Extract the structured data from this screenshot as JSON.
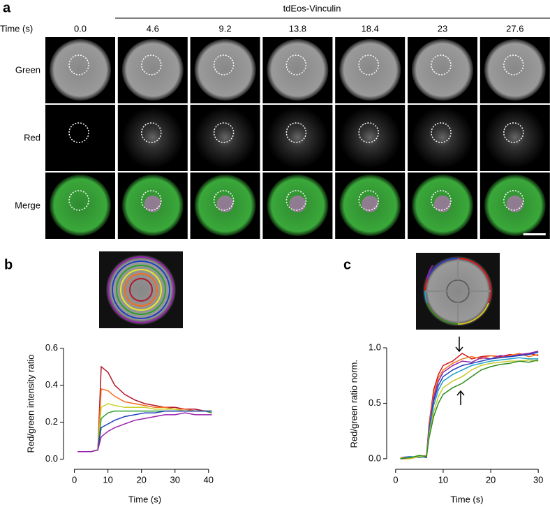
{
  "figure": {
    "panel_a": {
      "letter": "a",
      "title": "tdEos-Vinculin",
      "time_label": "Time (s)",
      "times": [
        "0.0",
        "4.6",
        "9.2",
        "13.8",
        "18.4",
        "23",
        "27.6"
      ],
      "rows": [
        "Green",
        "Red",
        "Merge"
      ]
    },
    "panel_b": {
      "letter": "b"
    },
    "panel_c": {
      "letter": "c"
    }
  },
  "chart_data": [
    {
      "type": "line",
      "ylabel": "Red/green intensity ratio",
      "xlabel": "Time (s)",
      "x": [
        1,
        3,
        5,
        7,
        8,
        10,
        12,
        15,
        18,
        21,
        24,
        27,
        30,
        33,
        36,
        39,
        41
      ],
      "xlim": [
        -2,
        44
      ],
      "xticks": [
        0,
        10,
        20,
        30,
        40
      ],
      "ylim": [
        -0.04,
        0.64
      ],
      "yticks": [
        {
          "value": 0,
          "label": "0.0"
        },
        {
          "value": 0.2,
          "label": "0.2"
        },
        {
          "value": 0.4,
          "label": "0.4"
        },
        {
          "value": 0.6,
          "label": "0.6"
        }
      ],
      "series": [
        {
          "color": "#b2182b",
          "values": [
            0.04,
            0.04,
            0.04,
            0.05,
            0.5,
            0.47,
            0.4,
            0.35,
            0.32,
            0.3,
            0.29,
            0.28,
            0.28,
            0.27,
            0.27,
            0.26,
            0.26
          ]
        },
        {
          "color": "#f46d1e",
          "values": [
            0.04,
            0.04,
            0.04,
            0.05,
            0.38,
            0.37,
            0.34,
            0.31,
            0.3,
            0.29,
            0.28,
            0.28,
            0.27,
            0.27,
            0.26,
            0.26,
            0.25
          ]
        },
        {
          "color": "#c8d22a",
          "values": [
            0.04,
            0.04,
            0.04,
            0.05,
            0.28,
            0.3,
            0.29,
            0.28,
            0.28,
            0.28,
            0.27,
            0.27,
            0.27,
            0.26,
            0.26,
            0.26,
            0.26
          ]
        },
        {
          "color": "#2ca02c",
          "values": [
            0.04,
            0.04,
            0.04,
            0.05,
            0.22,
            0.25,
            0.26,
            0.26,
            0.26,
            0.26,
            0.26,
            0.26,
            0.26,
            0.26,
            0.26,
            0.26,
            0.25
          ]
        },
        {
          "color": "#1f3fbf",
          "values": [
            0.04,
            0.04,
            0.04,
            0.05,
            0.17,
            0.19,
            0.21,
            0.23,
            0.24,
            0.25,
            0.25,
            0.26,
            0.26,
            0.26,
            0.26,
            0.26,
            0.26
          ]
        },
        {
          "color": "#9b1fb0",
          "values": [
            0.04,
            0.04,
            0.04,
            0.05,
            0.12,
            0.15,
            0.17,
            0.19,
            0.21,
            0.22,
            0.23,
            0.24,
            0.24,
            0.25,
            0.24,
            0.24,
            0.24
          ]
        }
      ]
    },
    {
      "type": "line",
      "ylabel": "Red/green ratio norm.",
      "xlabel": "Time (s)",
      "x": [
        1,
        3,
        5,
        6.5,
        7,
        8,
        9,
        10,
        12,
        14,
        16,
        18,
        20,
        22,
        24,
        26,
        28,
        30
      ],
      "xlim": [
        -1,
        31
      ],
      "xticks": [
        0,
        10,
        20,
        30
      ],
      "ylim": [
        -0.07,
        1.06
      ],
      "yticks": [
        {
          "value": 0,
          "label": "0.0"
        },
        {
          "value": 0.5,
          "label": "0.5"
        },
        {
          "value": 1,
          "label": "1.0"
        }
      ],
      "series": [
        {
          "color": "#d7191c",
          "values": [
            0.0,
            0.01,
            0.02,
            0.02,
            0.3,
            0.62,
            0.76,
            0.84,
            0.88,
            0.95,
            0.9,
            0.92,
            0.93,
            0.92,
            0.94,
            0.93,
            0.95,
            0.93
          ]
        },
        {
          "color": "#f47a1e",
          "values": [
            0.0,
            0.0,
            0.02,
            0.03,
            0.28,
            0.58,
            0.73,
            0.8,
            0.86,
            0.9,
            0.92,
            0.9,
            0.93,
            0.91,
            0.93,
            0.95,
            0.92,
            0.94
          ]
        },
        {
          "color": "#8e24aa",
          "values": [
            0.01,
            0.02,
            0.01,
            0.02,
            0.26,
            0.55,
            0.7,
            0.78,
            0.84,
            0.88,
            0.87,
            0.91,
            0.9,
            0.93,
            0.92,
            0.94,
            0.95,
            0.97
          ]
        },
        {
          "color": "#1f3fbf",
          "values": [
            0.0,
            0.01,
            0.02,
            0.01,
            0.24,
            0.52,
            0.66,
            0.74,
            0.8,
            0.84,
            0.86,
            0.88,
            0.9,
            0.91,
            0.92,
            0.93,
            0.94,
            0.96
          ]
        },
        {
          "color": "#1fa0c8",
          "values": [
            0.0,
            0.02,
            0.01,
            0.02,
            0.22,
            0.48,
            0.62,
            0.7,
            0.76,
            0.8,
            0.84,
            0.86,
            0.88,
            0.89,
            0.9,
            0.91,
            0.9,
            0.9
          ]
        },
        {
          "color": "#c8c82a",
          "values": [
            0.01,
            0.0,
            0.02,
            0.02,
            0.2,
            0.42,
            0.56,
            0.64,
            0.7,
            0.74,
            0.8,
            0.84,
            0.86,
            0.87,
            0.88,
            0.88,
            0.89,
            0.88
          ]
        },
        {
          "color": "#2e8b1e",
          "values": [
            0.0,
            0.01,
            0.03,
            0.02,
            0.18,
            0.38,
            0.5,
            0.58,
            0.64,
            0.68,
            0.74,
            0.8,
            0.83,
            0.85,
            0.86,
            0.88,
            0.87,
            0.89
          ]
        }
      ]
    }
  ]
}
